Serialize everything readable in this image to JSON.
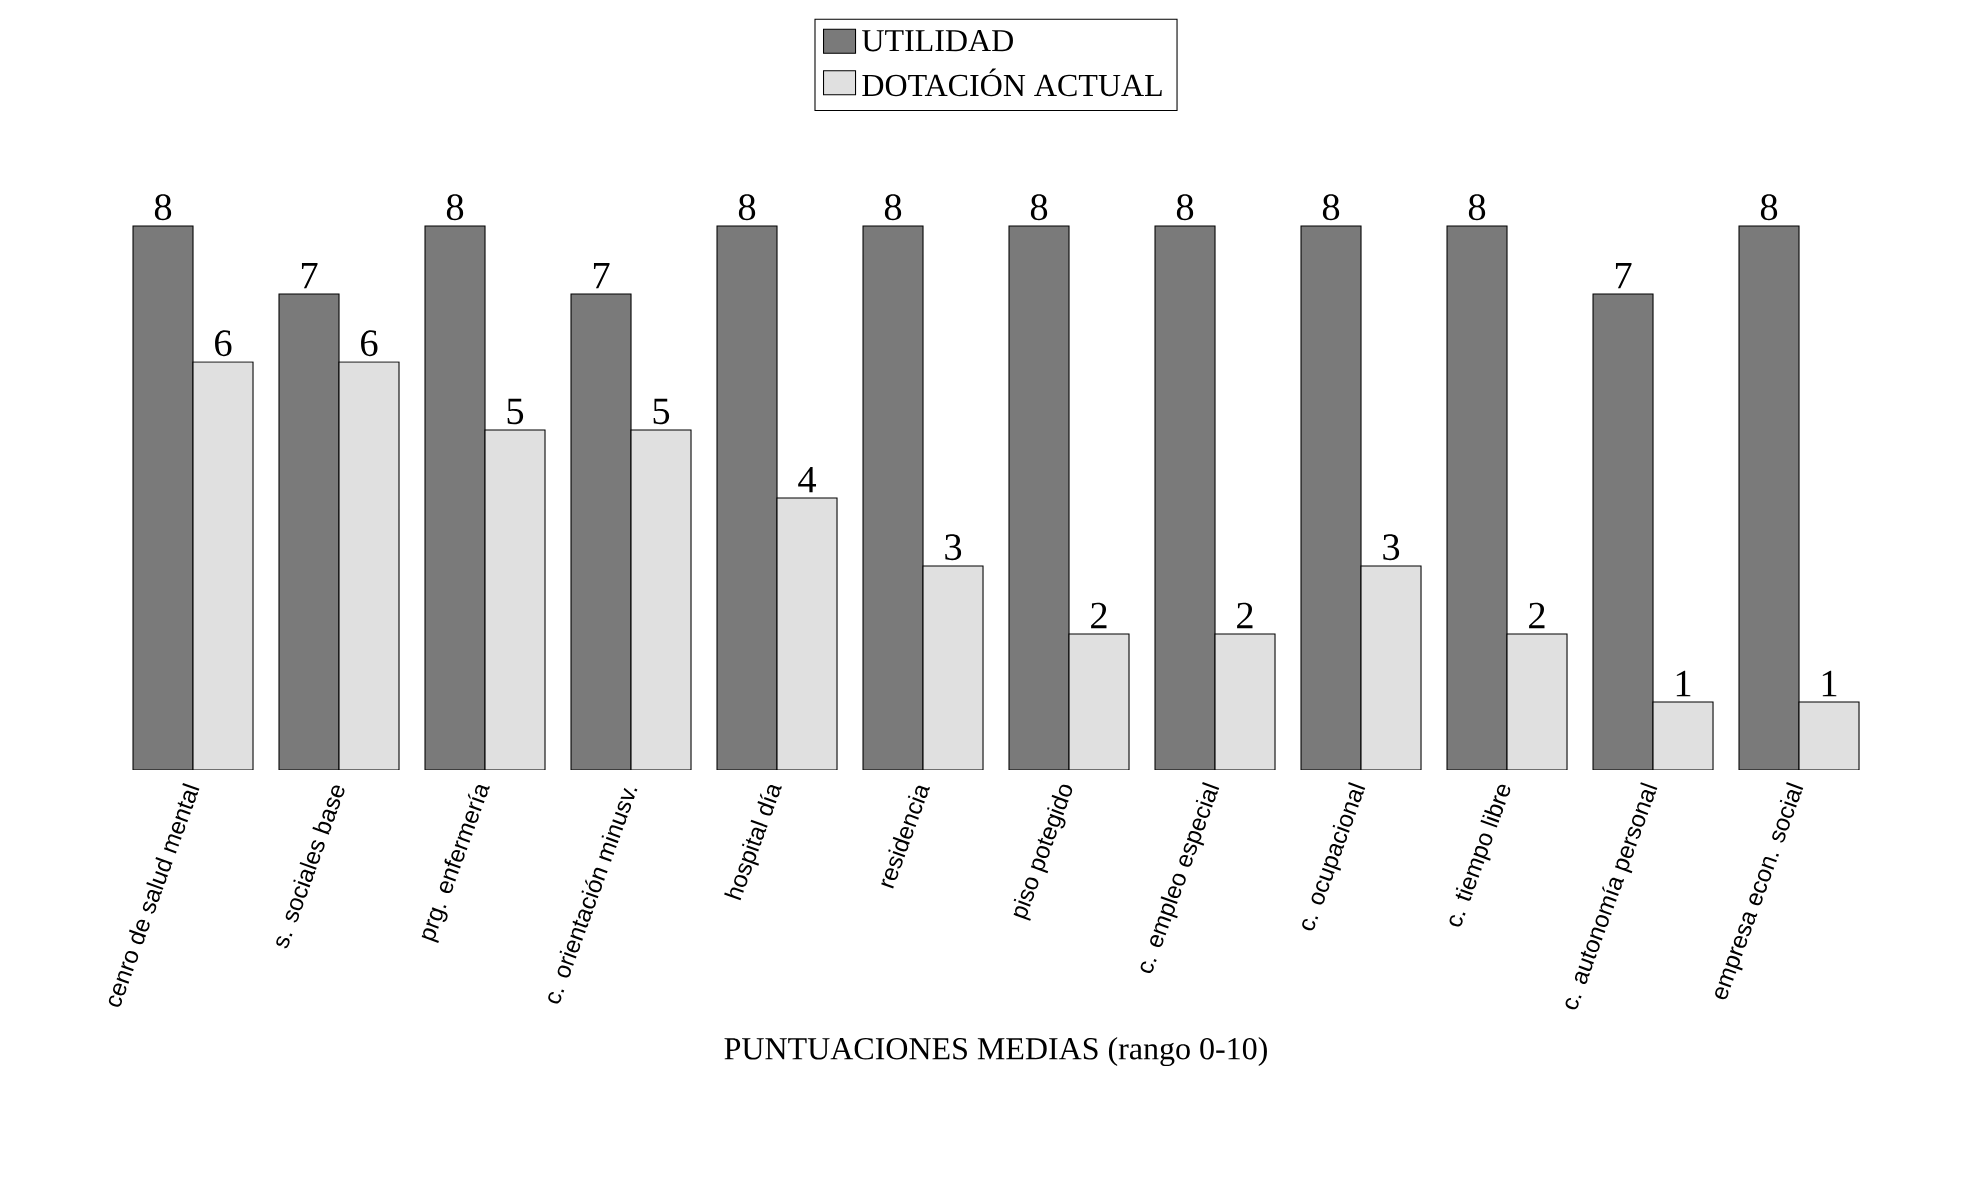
{
  "chart_data": {
    "type": "bar",
    "xlabel": "PUNTUACIONES MEDIAS (rango 0-10)",
    "categories": [
      "cenro de salud mental",
      "s. sociales base",
      "prg. enfermería",
      "c. orientación minusv.",
      "hospital día",
      "residencia",
      "piso potegido",
      "c. empleo especial",
      "c. ocupacional",
      "c. tiempo libre",
      "c. autonomía personal",
      "empresa econ. social"
    ],
    "series": [
      {
        "name": "UTILIDAD",
        "color": "#7a7a7a",
        "values": [
          8,
          7,
          8,
          7,
          8,
          8,
          8,
          8,
          8,
          8,
          7,
          8
        ]
      },
      {
        "name": "DOTACIÓN ACTUAL",
        "color": "#e0e0e0",
        "values": [
          6,
          6,
          5,
          5,
          4,
          3,
          2,
          2,
          3,
          2,
          1,
          1
        ]
      }
    ],
    "data_labels": true,
    "legend": "top",
    "tick_labels": "x"
  }
}
